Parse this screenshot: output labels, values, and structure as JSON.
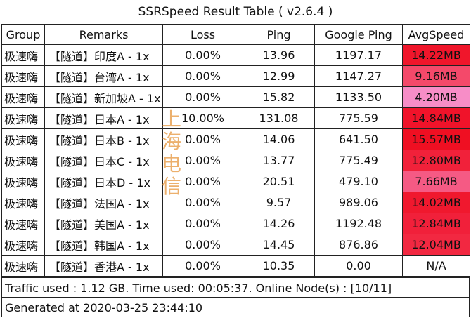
{
  "title": "SSRSpeed Result Table ( v2.6.4 )",
  "columns": [
    "Group",
    "Remarks",
    "Loss",
    "Ping",
    "Google Ping",
    "AvgSpeed"
  ],
  "rows": [
    {
      "group": "极速嗨",
      "remarks": "【隧道】印度A - 1x",
      "loss": "0.00%",
      "ping": "13.96",
      "google_ping": "1197.17",
      "avg_speed": "14.22MB",
      "speed_color": "#f0162b"
    },
    {
      "group": "极速嗨",
      "remarks": "【隧道】台湾A - 1x",
      "loss": "0.00%",
      "ping": "12.99",
      "google_ping": "1147.27",
      "avg_speed": "9.16MB",
      "speed_color": "#f4496a"
    },
    {
      "group": "极速嗨",
      "remarks": "【隧道】新加坡A - 1x",
      "loss": "0.00%",
      "ping": "15.82",
      "google_ping": "1133.50",
      "avg_speed": "4.20MB",
      "speed_color": "#f78dc7"
    },
    {
      "group": "极速嗨",
      "remarks": "【隧道】日本A - 1x",
      "loss": "10.00%",
      "ping": "131.08",
      "google_ping": "775.59",
      "avg_speed": "14.84MB",
      "speed_color": "#f0132a"
    },
    {
      "group": "极速嗨",
      "remarks": "【隧道】日本B - 1x",
      "loss": "0.00%",
      "ping": "14.06",
      "google_ping": "641.50",
      "avg_speed": "15.57MB",
      "speed_color": "#ef0f22"
    },
    {
      "group": "极速嗨",
      "remarks": "【隧道】日本C - 1x",
      "loss": "0.00%",
      "ping": "13.77",
      "google_ping": "775.49",
      "avg_speed": "12.80MB",
      "speed_color": "#f1213a"
    },
    {
      "group": "极速嗨",
      "remarks": "【隧道】日本D - 1x",
      "loss": "0.00%",
      "ping": "20.51",
      "google_ping": "479.10",
      "avg_speed": "7.66MB",
      "speed_color": "#f55a84"
    },
    {
      "group": "极速嗨",
      "remarks": "【隧道】法国A - 1x",
      "loss": "0.00%",
      "ping": "9.57",
      "google_ping": "989.06",
      "avg_speed": "14.02MB",
      "speed_color": "#f0182e"
    },
    {
      "group": "极速嗨",
      "remarks": "【隧道】美国A - 1x",
      "loss": "0.00%",
      "ping": "14.26",
      "google_ping": "1192.48",
      "avg_speed": "12.84MB",
      "speed_color": "#f1203a"
    },
    {
      "group": "极速嗨",
      "remarks": "【隧道】韩国A - 1x",
      "loss": "0.00%",
      "ping": "14.45",
      "google_ping": "876.86",
      "avg_speed": "12.04MB",
      "speed_color": "#f22841"
    },
    {
      "group": "极速嗨",
      "remarks": "【隧道】香港A - 1x",
      "loss": "0.00%",
      "ping": "10.35",
      "google_ping": "0.00",
      "avg_speed": "N/A",
      "speed_color": "#ffffff"
    }
  ],
  "footer": {
    "traffic": "Traffic used : 1.12 GB. Time used: 00:05:37. Online Node(s) : [10/11]",
    "generated": "Generated at 2020-03-25 23:44:10"
  },
  "watermark": [
    "上",
    "海",
    "电",
    "信"
  ]
}
